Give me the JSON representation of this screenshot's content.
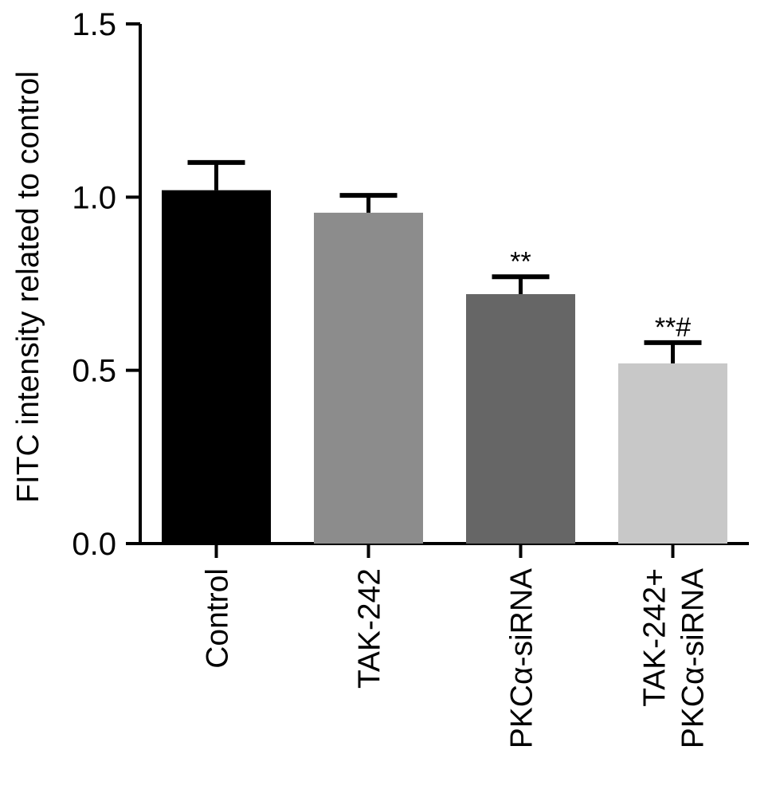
{
  "chart_data": {
    "type": "bar",
    "ylabel": "FITC intensity related to control",
    "ylim": [
      0,
      1.5
    ],
    "yticks": [
      0.0,
      0.5,
      1.0,
      1.5
    ],
    "ytick_labels": [
      "0.0",
      "0.5",
      "1.0",
      "1.5"
    ],
    "categories": [
      [
        "Control"
      ],
      [
        "TAK-242"
      ],
      [
        "PKCα-siRNA"
      ],
      [
        "TAK-242+",
        "PKCα-siRNA"
      ]
    ],
    "values": [
      1.02,
      0.955,
      0.72,
      0.52
    ],
    "error": [
      0.08,
      0.05,
      0.05,
      0.06
    ],
    "annotations": [
      "",
      "",
      "**",
      "**#"
    ],
    "colors": [
      "#000000",
      "#8c8c8c",
      "#666666",
      "#c8c8c8"
    ],
    "grid": false
  }
}
